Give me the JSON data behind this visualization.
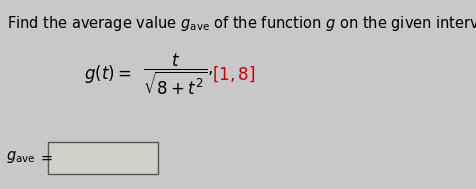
{
  "title_text": "Find the average value $g_\\mathrm{ave}$ of the function $g$ on the given interval.",
  "formula_left": "$g(t) =$",
  "formula_frac": "$\\dfrac{t}{\\sqrt{8+t^2}},$",
  "interval": "$[1, 8]$",
  "label_gave": "$g_\\mathrm{ave}$",
  "equals": "$=$",
  "bg_color": "#c8c8c8",
  "box_color": "#d0cfc8",
  "title_fontsize": 10.5,
  "formula_fontsize": 12,
  "label_fontsize": 10.5,
  "interval_color": "#cc0000"
}
